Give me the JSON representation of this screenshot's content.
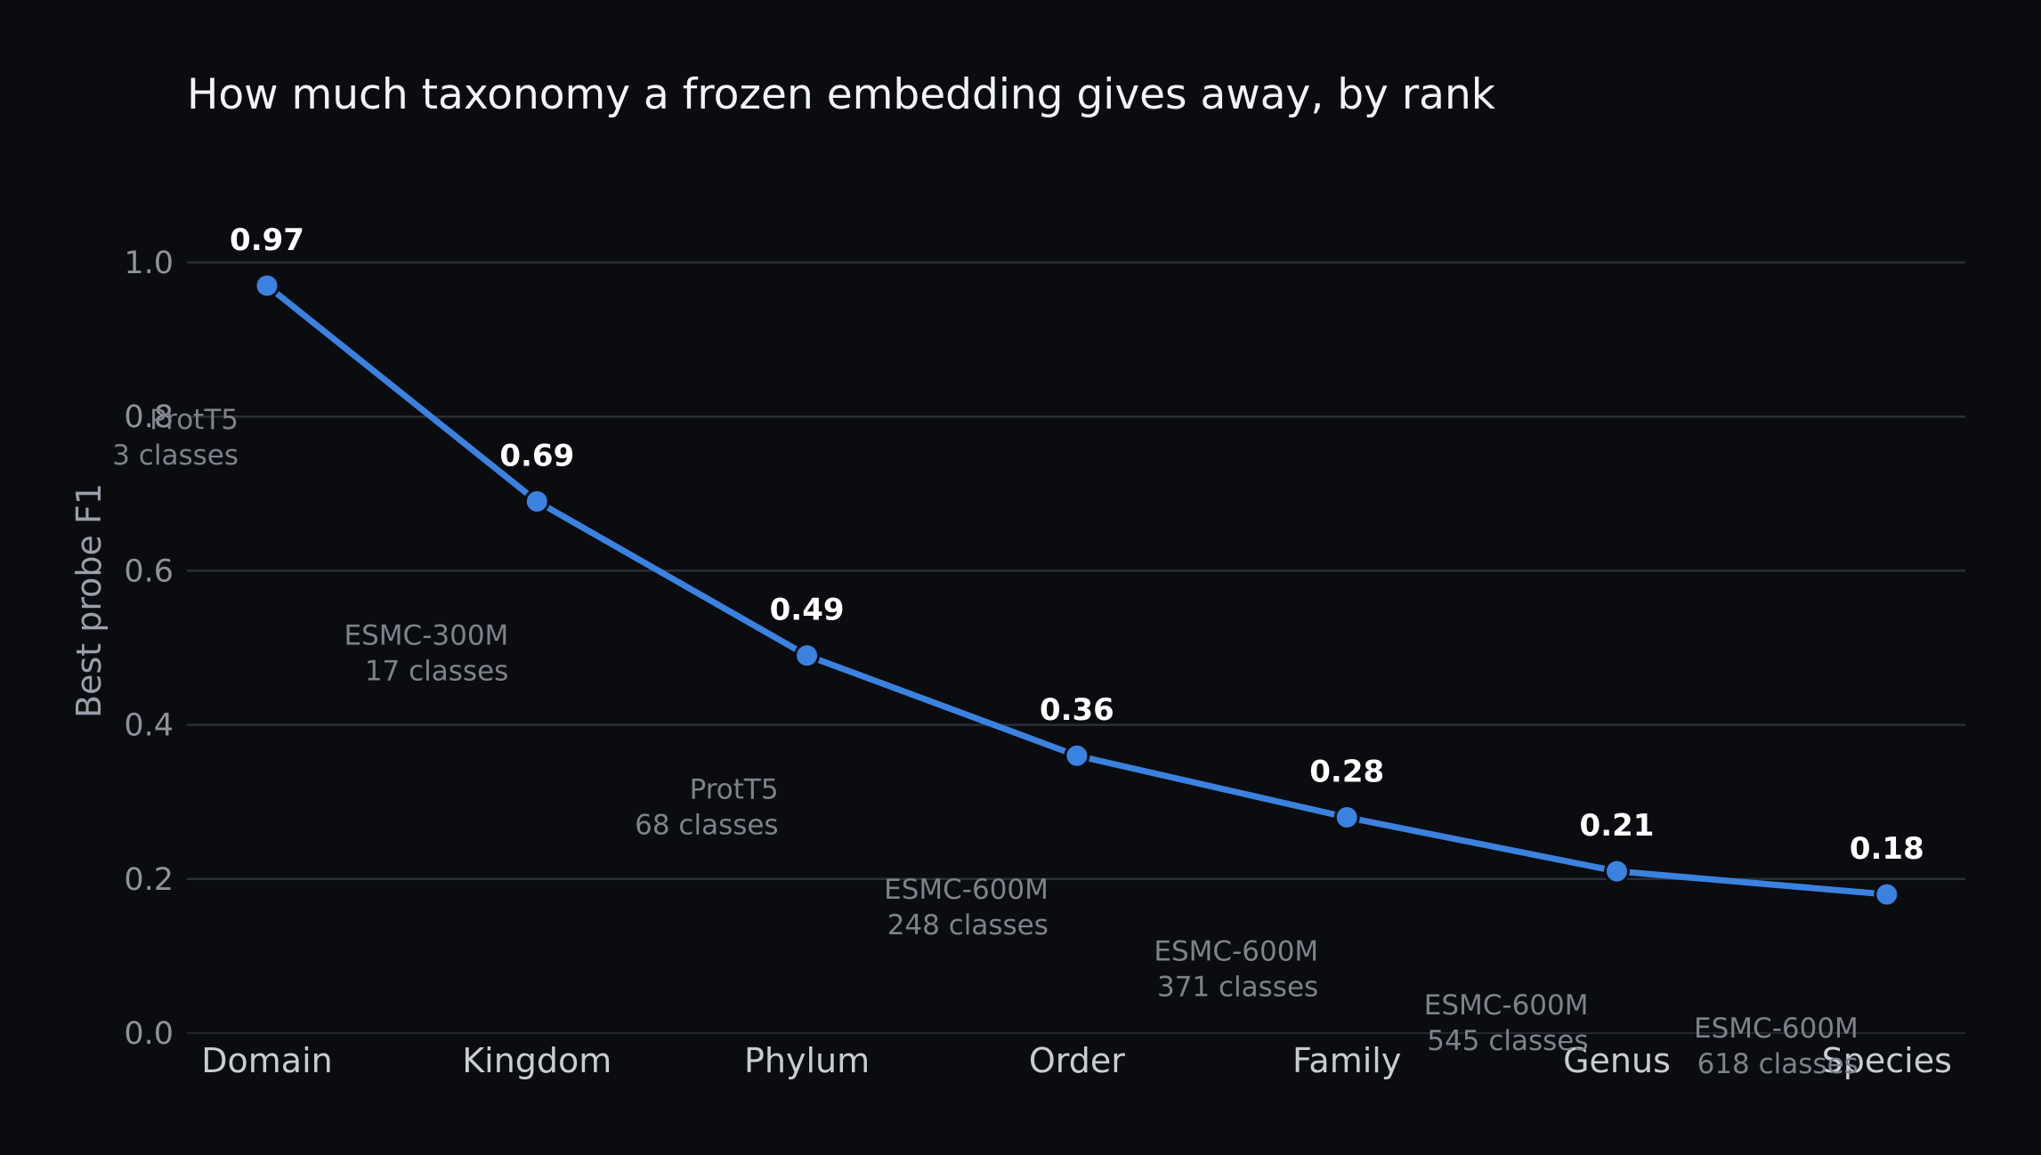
{
  "chart_data": {
    "type": "line",
    "title": "How much taxonomy a frozen embedding gives away, by rank",
    "xlabel": "",
    "ylabel": "Best probe F1",
    "ylim": [
      0,
      1.0
    ],
    "yticks": [
      "0.0",
      "0.2",
      "0.4",
      "0.6",
      "0.8",
      "1.0"
    ],
    "grid": true,
    "categories": [
      "Domain",
      "Kingdom",
      "Phylum",
      "Order",
      "Family",
      "Genus",
      "Species"
    ],
    "values": [
      0.97,
      0.69,
      0.49,
      0.36,
      0.28,
      0.21,
      0.18
    ],
    "value_labels": [
      "0.97",
      "0.69",
      "0.49",
      "0.36",
      "0.28",
      "0.21",
      "0.18"
    ],
    "annotations": [
      {
        "model": "ProtT5",
        "classes": "3 classes"
      },
      {
        "model": "ESMC-300M",
        "classes": "17 classes"
      },
      {
        "model": "ProtT5",
        "classes": "68 classes"
      },
      {
        "model": "ESMC-600M",
        "classes": "248 classes"
      },
      {
        "model": "ESMC-600M",
        "classes": "371 classes"
      },
      {
        "model": "ESMC-600M",
        "classes": "545 classes"
      },
      {
        "model": "ESMC-600M",
        "classes": "618 classes"
      }
    ],
    "colors": {
      "line": "#3b82e0",
      "background": "#0a0c10"
    }
  }
}
